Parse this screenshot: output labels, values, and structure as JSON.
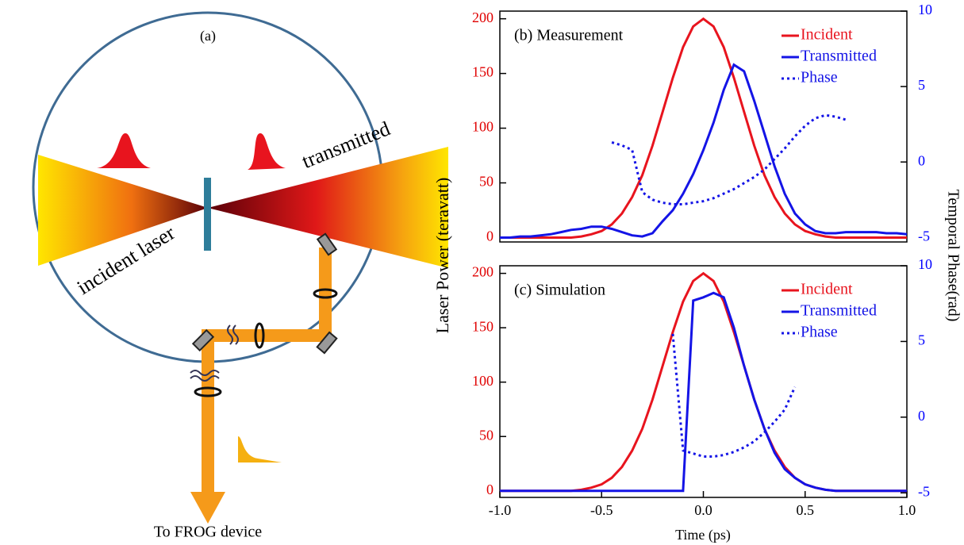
{
  "diagram": {
    "label": "(a)",
    "incident": "incident laser",
    "transmitted": "transmitted",
    "output": "To FROG device"
  },
  "axis_labels": {
    "ylabel": "Laser Power (teravatt)",
    "y2label": "Temporal Phase(rad)",
    "xlabel": "Time (ps)"
  },
  "chart_data": [
    {
      "type": "line",
      "title": "(b)  Measurement",
      "x": [
        -1,
        -0.95,
        -0.9,
        -0.85,
        -0.8,
        -0.75,
        -0.7,
        -0.65,
        -0.6,
        -0.55,
        -0.5,
        -0.45,
        -0.4,
        -0.35,
        -0.3,
        -0.25,
        -0.2,
        -0.15,
        -0.1,
        -0.05,
        0,
        0.05,
        0.1,
        0.15,
        0.2,
        0.25,
        0.3,
        0.35,
        0.4,
        0.45,
        0.5,
        0.55,
        0.6,
        0.65,
        0.7,
        0.75,
        0.8,
        0.85,
        0.9,
        0.95,
        1
      ],
      "xlim": [
        -1,
        1
      ],
      "ylim": [
        -4,
        207
      ],
      "y2lim": [
        -5.3,
        10
      ],
      "yticks": [
        0,
        50,
        100,
        150,
        200
      ],
      "y2ticks": [
        -5,
        0,
        5,
        10
      ],
      "ytick_color": "#e00000",
      "y2tick_color": "#0000ff",
      "legend": "upper right",
      "series": [
        {
          "name": "Incident",
          "color": "#e8141e",
          "style": "solid",
          "values": [
            0,
            0,
            0,
            0,
            0,
            0,
            0,
            0,
            1,
            3,
            6,
            12,
            22,
            37,
            57,
            84,
            115,
            146,
            174,
            193,
            200,
            193,
            174,
            146,
            115,
            84,
            57,
            37,
            22,
            12,
            6,
            3,
            1,
            0,
            0,
            0,
            0,
            0,
            0,
            0,
            0
          ]
        },
        {
          "name": "Transmitted",
          "color": "#1414e6",
          "style": "solid",
          "values": [
            0,
            0,
            1,
            1,
            2,
            3,
            5,
            7,
            8,
            10,
            10,
            8,
            5,
            2,
            1,
            4,
            15,
            25,
            40,
            58,
            80,
            105,
            135,
            158,
            152,
            125,
            95,
            65,
            40,
            22,
            12,
            6,
            4,
            4,
            5,
            5,
            5,
            5,
            4,
            4,
            3
          ]
        },
        {
          "name": "Phase",
          "color": "#1414e6",
          "style": "dotted",
          "axis": "y2",
          "values": [
            null,
            null,
            null,
            null,
            null,
            null,
            null,
            null,
            null,
            null,
            null,
            1.3,
            1.1,
            0.8,
            -2.0,
            -2.5,
            -2.7,
            -2.8,
            -2.8,
            -2.7,
            -2.6,
            -2.4,
            -2.1,
            -1.8,
            -1.4,
            -1.0,
            -0.5,
            0.2,
            0.9,
            1.7,
            2.4,
            2.9,
            3.1,
            3.0,
            2.8,
            null,
            null,
            null,
            null,
            null,
            null
          ]
        }
      ]
    },
    {
      "type": "line",
      "title": "(c)  Simulation",
      "x": [
        -1,
        -0.95,
        -0.9,
        -0.85,
        -0.8,
        -0.75,
        -0.7,
        -0.65,
        -0.6,
        -0.55,
        -0.5,
        -0.45,
        -0.4,
        -0.35,
        -0.3,
        -0.25,
        -0.2,
        -0.15,
        -0.1,
        -0.05,
        0,
        0.05,
        0.1,
        0.15,
        0.2,
        0.25,
        0.3,
        0.35,
        0.4,
        0.45,
        0.5,
        0.55,
        0.6,
        0.65,
        0.7,
        0.75,
        0.8,
        0.85,
        0.9,
        0.95,
        1
      ],
      "xlim": [
        -1,
        1
      ],
      "ylim": [
        -6,
        207
      ],
      "y2lim": [
        -5.3,
        10
      ],
      "xticks": [
        {
          "value": -1,
          "label": "-1.0"
        },
        {
          "value": -0.5,
          "label": "-0.5"
        },
        {
          "value": 0,
          "label": "0.0"
        },
        {
          "value": 0.5,
          "label": "0.5"
        },
        {
          "value": 1,
          "label": "1.0"
        }
      ],
      "yticks": [
        0,
        50,
        100,
        150,
        200
      ],
      "y2ticks": [
        -5,
        0,
        5,
        10
      ],
      "ytick_color": "#e00000",
      "y2tick_color": "#0000ff",
      "legend": "upper right",
      "series": [
        {
          "name": "Incident",
          "color": "#e8141e",
          "style": "solid",
          "values": [
            0,
            0,
            0,
            0,
            0,
            0,
            0,
            0,
            1,
            3,
            6,
            12,
            22,
            37,
            57,
            84,
            115,
            146,
            174,
            193,
            200,
            193,
            174,
            146,
            115,
            84,
            57,
            37,
            22,
            12,
            6,
            3,
            1,
            0,
            0,
            0,
            0,
            0,
            0,
            0,
            0
          ]
        },
        {
          "name": "Transmitted",
          "color": "#1414e6",
          "style": "solid",
          "values": [
            0,
            0,
            0,
            0,
            0,
            0,
            0,
            0,
            0,
            0,
            0,
            0,
            0,
            0,
            0,
            0,
            0,
            0,
            0,
            175,
            178,
            182,
            178,
            150,
            115,
            84,
            57,
            35,
            20,
            12,
            6,
            3,
            1,
            0,
            0,
            0,
            0,
            0,
            0,
            0,
            0
          ]
        },
        {
          "name": "Phase",
          "color": "#1414e6",
          "style": "dotted",
          "axis": "y2",
          "values": [
            null,
            null,
            null,
            null,
            null,
            null,
            null,
            null,
            null,
            null,
            null,
            null,
            null,
            null,
            null,
            null,
            null,
            5.5,
            -2.2,
            -2.4,
            -2.6,
            -2.6,
            -2.5,
            -2.3,
            -2.0,
            -1.6,
            -1.0,
            -0.3,
            0.5,
            2.0,
            null,
            null,
            null,
            null,
            null,
            null,
            null,
            null,
            null,
            null,
            null
          ]
        }
      ]
    }
  ]
}
